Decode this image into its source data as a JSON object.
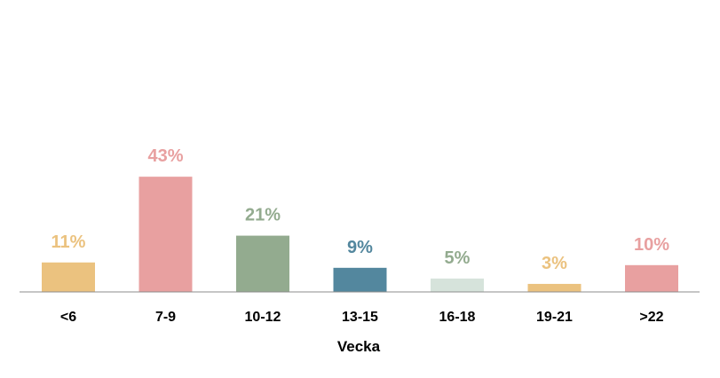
{
  "chart_data": {
    "type": "bar",
    "categories": [
      "<6",
      "7-9",
      "10-12",
      "13-15",
      "16-18",
      "19-21",
      ">22"
    ],
    "values": [
      11,
      43,
      21,
      9,
      5,
      3,
      10
    ],
    "value_labels": [
      "11%",
      "43%",
      "21%",
      "9%",
      "5%",
      "3%",
      "10%"
    ],
    "colors": [
      "#EBC27F",
      "#E8A0A0",
      "#93AB8F",
      "#53879E",
      "#D6E3DB",
      "#EBC27F",
      "#E8A0A0"
    ],
    "label_colors": [
      "#EBC27F",
      "#E8A0A0",
      "#93AB8F",
      "#53879E",
      "#93AB8F",
      "#EBC27F",
      "#E8A0A0"
    ],
    "xlabel": "Vecka",
    "ylabel": "",
    "title": "",
    "ylim": [
      0,
      100
    ],
    "grid": false,
    "legend": "none"
  }
}
